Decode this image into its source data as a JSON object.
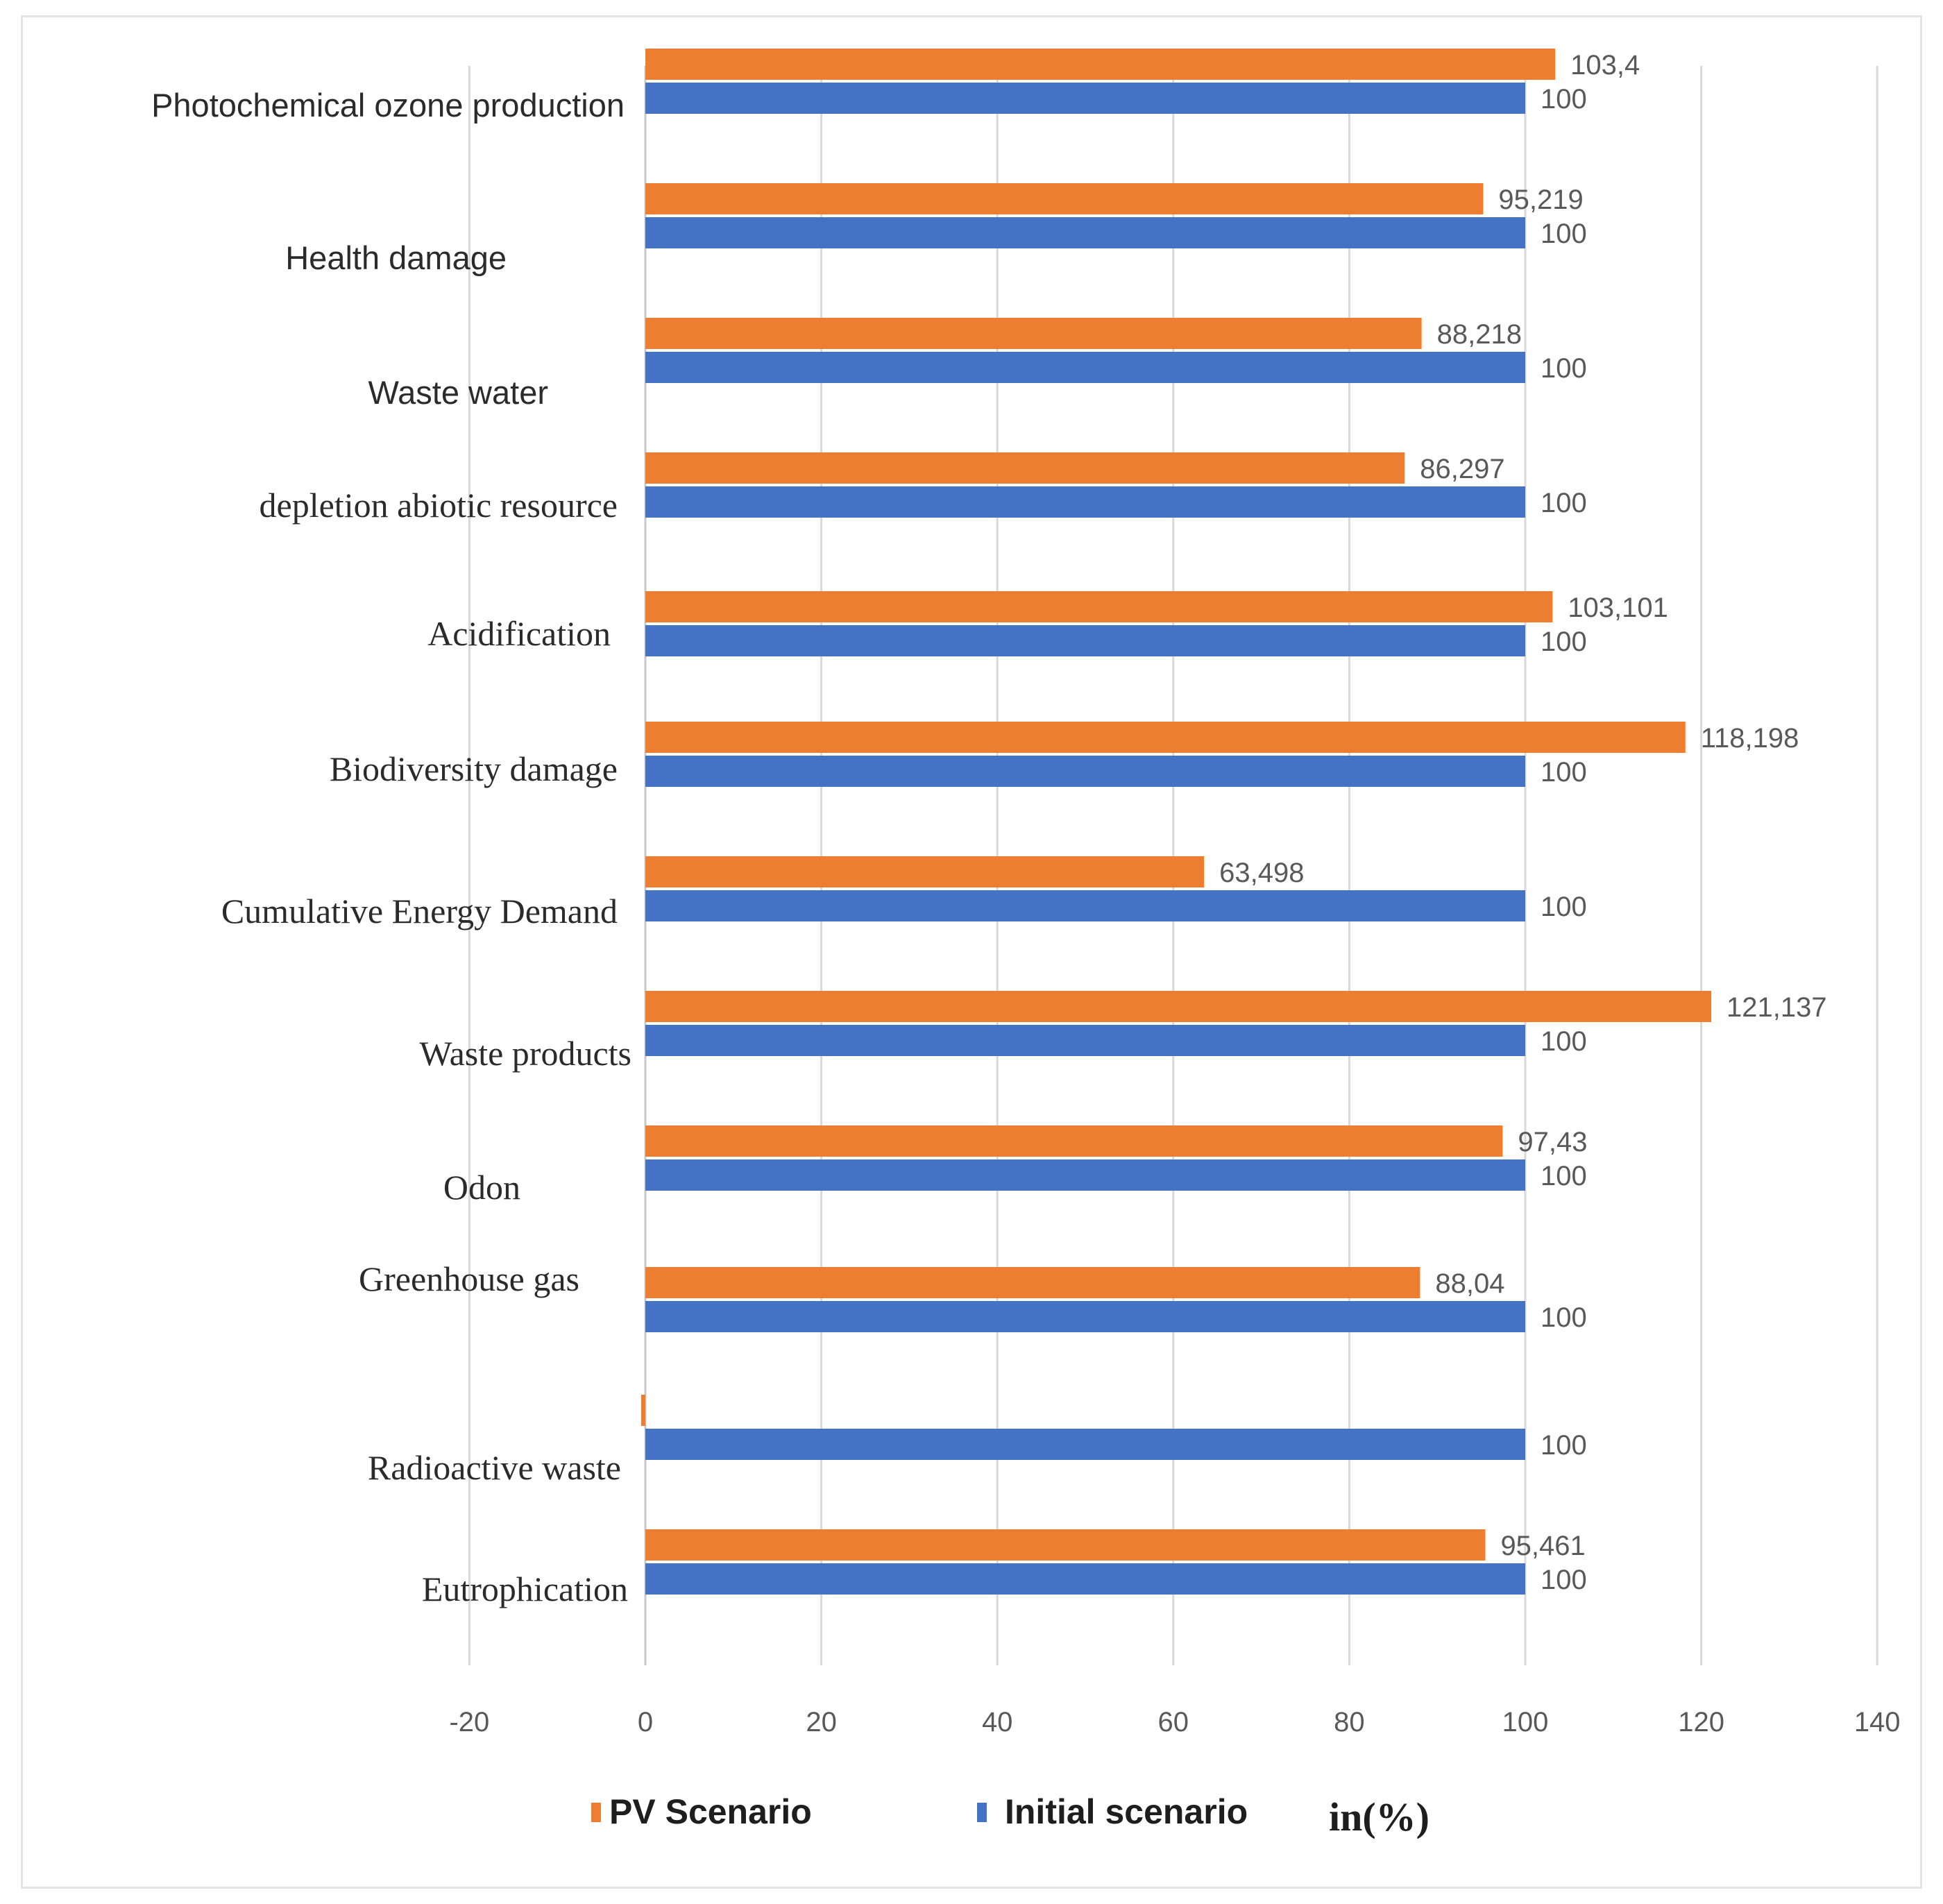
{
  "chart_data": {
    "type": "bar",
    "orientation": "horizontal",
    "categories": [
      "Photochemical ozone production",
      "Health damage",
      "Waste water",
      "depletion abiotic resource",
      "Acidification",
      "Biodiversity damage",
      "Cumulative Energy Demand",
      "Waste products",
      "Odon",
      "Greenhouse gas",
      "Radioactive waste",
      "Eutrophication"
    ],
    "series": [
      {
        "name": "PV Scenario",
        "color": "#ED7D31",
        "values": [
          103.4,
          95.219,
          88.218,
          86.297,
          103.101,
          118.198,
          63.498,
          121.137,
          97.43,
          88.04,
          0,
          95.461
        ],
        "labels": [
          "103,4",
          "95,219",
          "88,218",
          "86,297",
          "103,101",
          "118,198",
          "63,498",
          "121,137",
          "97,43",
          "88,04",
          "",
          "95,461"
        ]
      },
      {
        "name": "Initial scenario",
        "color": "#4472C4",
        "values": [
          100,
          100,
          100,
          100,
          100,
          100,
          100,
          100,
          100,
          100,
          100,
          100
        ],
        "labels": [
          "100",
          "100",
          "100",
          "100",
          "100",
          "100",
          "100",
          "100",
          "100",
          "100",
          "100",
          "100"
        ]
      }
    ],
    "xlim": [
      -20,
      140
    ],
    "xticks": [
      -20,
      0,
      20,
      40,
      60,
      80,
      100,
      120,
      140
    ],
    "grid": true,
    "legend_position": "bottom",
    "unit_label": "in(%)"
  }
}
